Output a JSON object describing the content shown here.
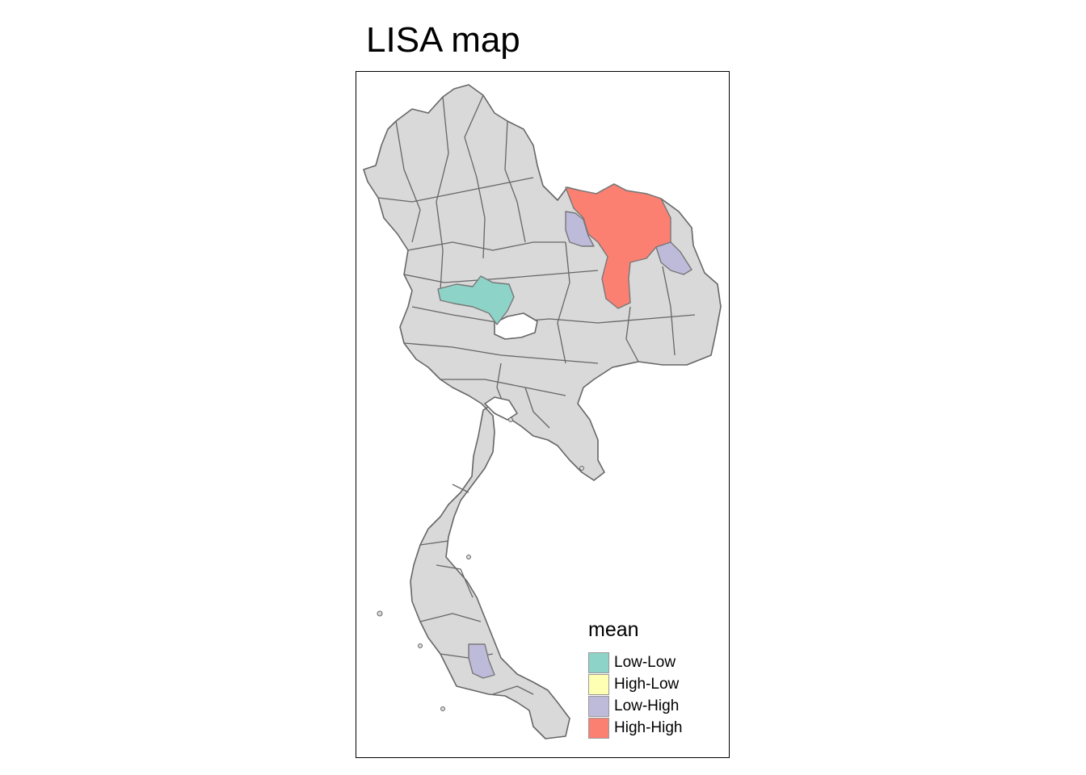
{
  "title": "LISA map",
  "legend": {
    "title": "mean",
    "items": [
      {
        "label": "Low-Low",
        "color": "#8DD3C7"
      },
      {
        "label": "High-Low",
        "color": "#FFFFB3"
      },
      {
        "label": "Low-High",
        "color": "#BEBADA"
      },
      {
        "label": "High-High",
        "color": "#FB8072"
      }
    ]
  },
  "colors": {
    "base_fill": "#D9D9D9",
    "border": "#666666"
  }
}
